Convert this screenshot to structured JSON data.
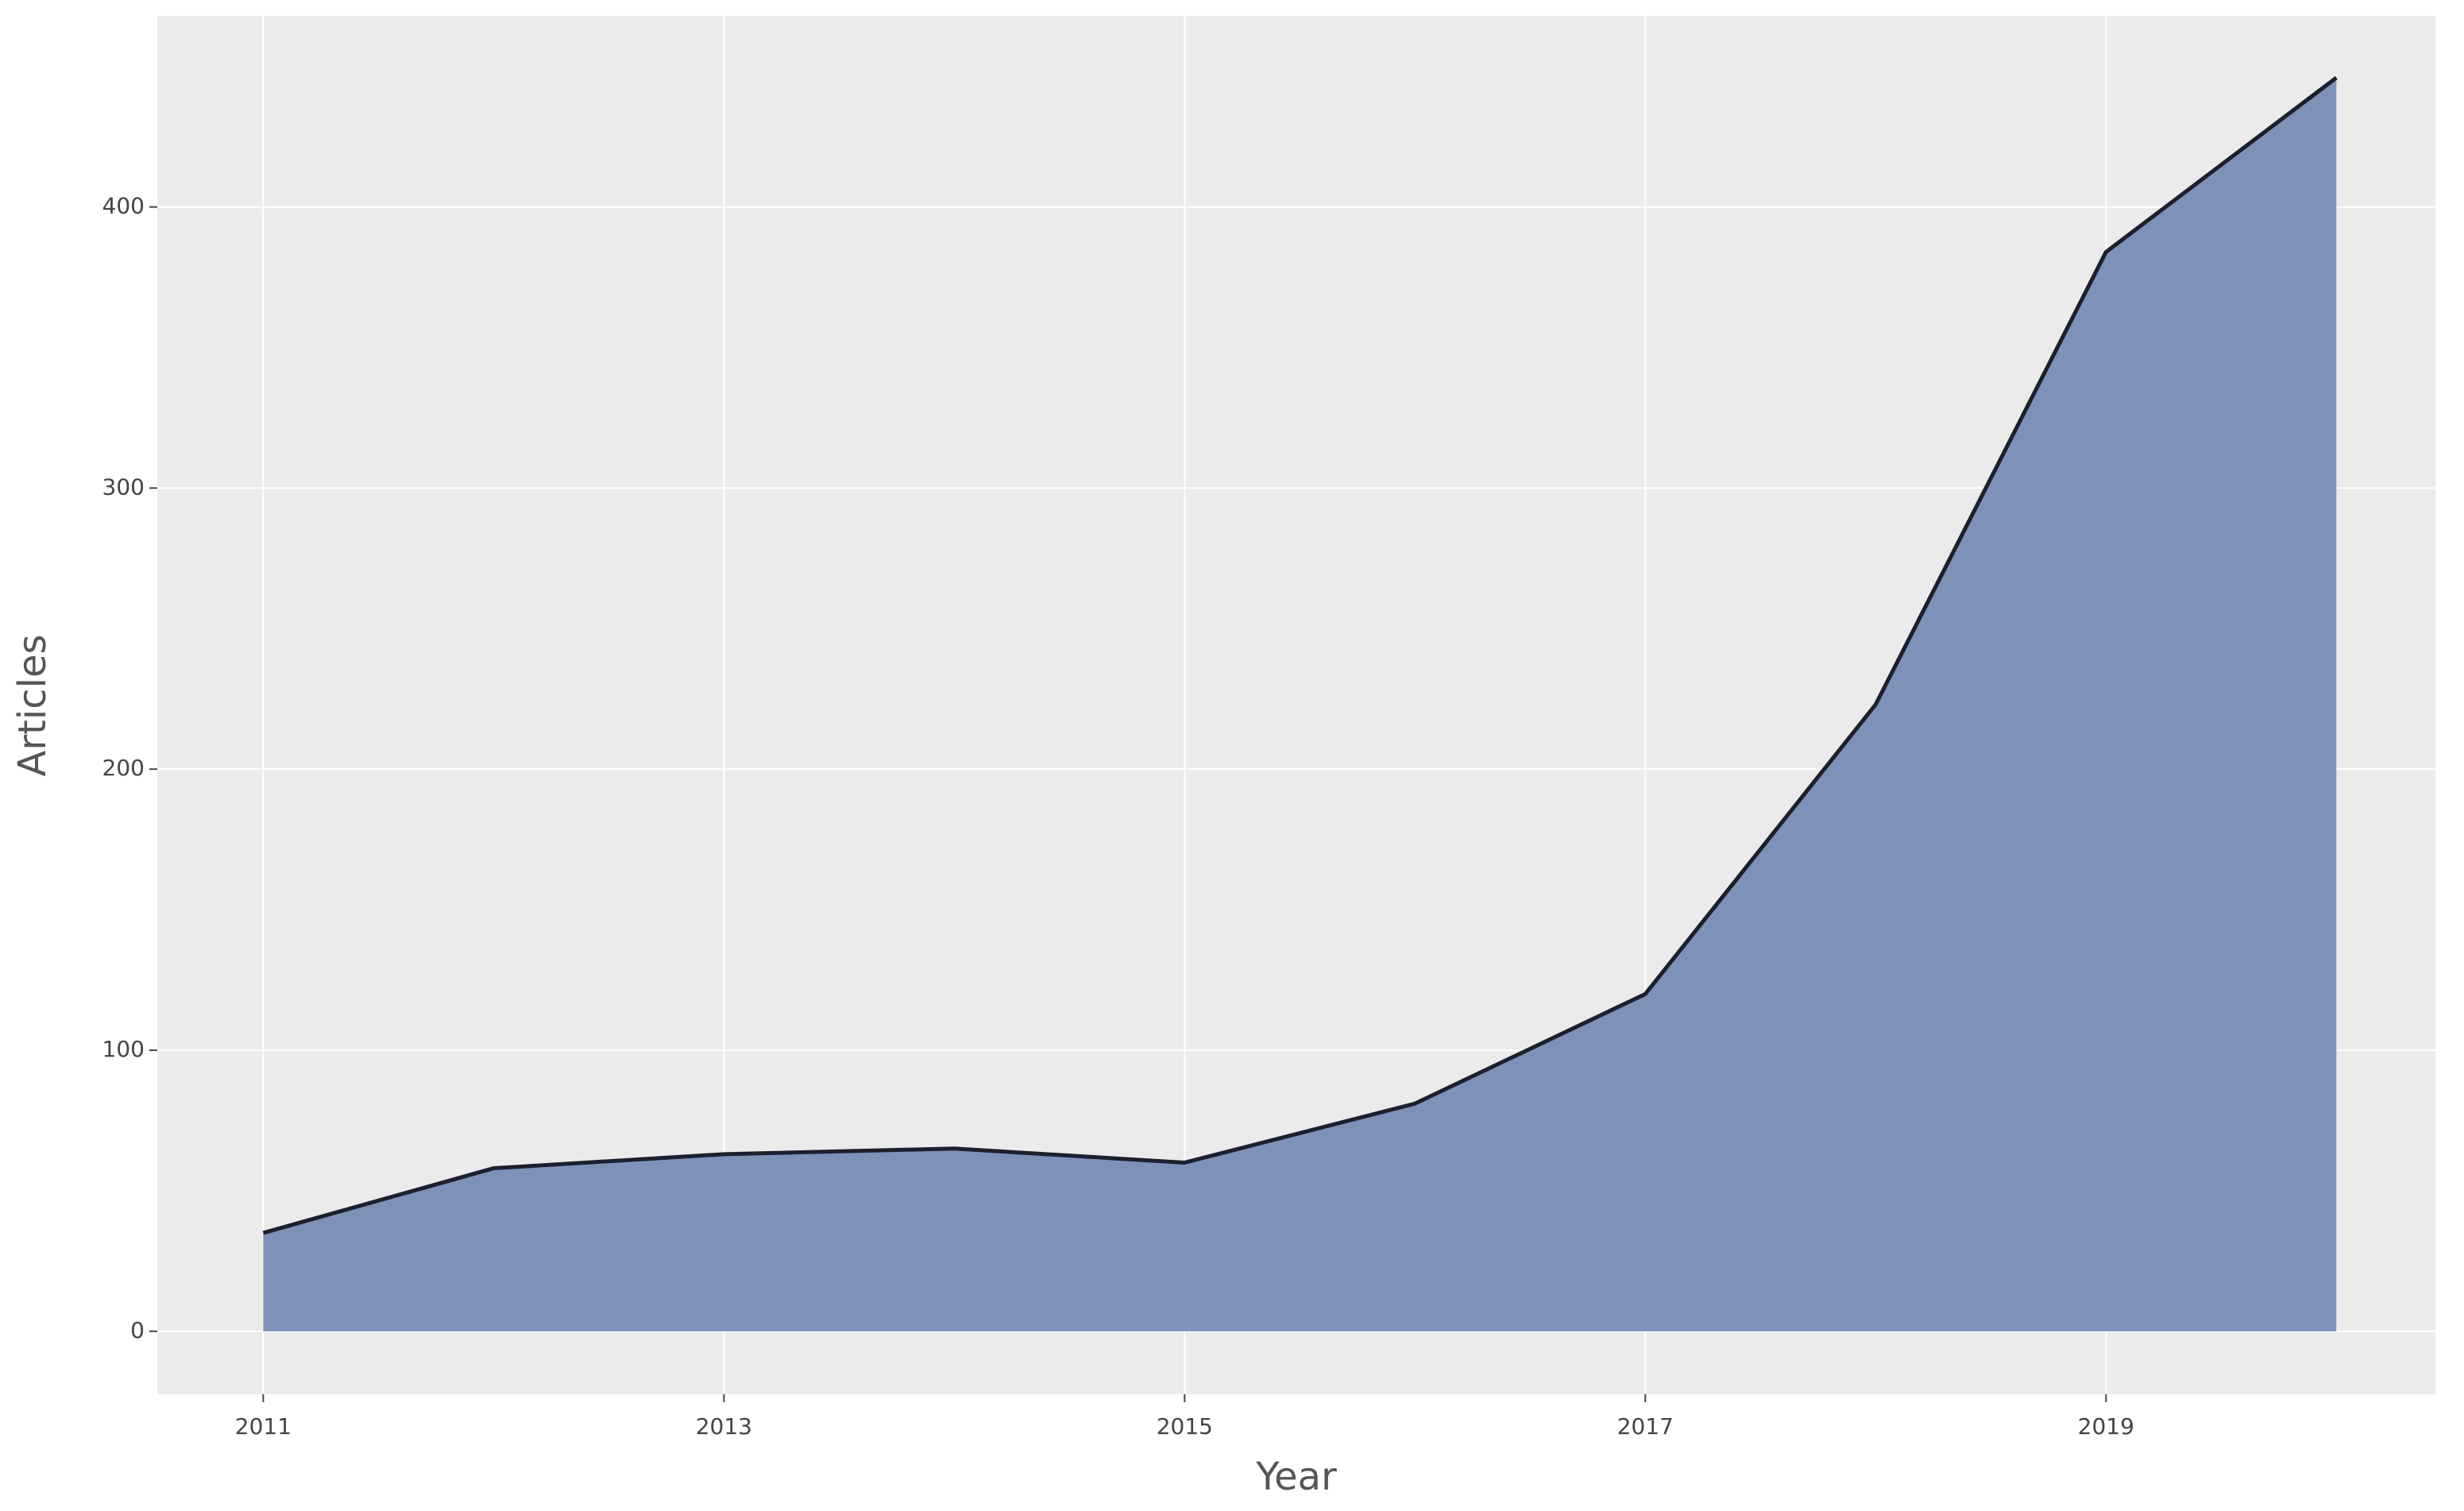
{
  "chart_data": {
    "type": "area",
    "x_label": "Year",
    "y_label": "Articles",
    "x": [
      2011,
      2012,
      2013,
      2014,
      2015,
      2016,
      2017,
      2018,
      2019,
      2020
    ],
    "series": [
      {
        "name": "Articles",
        "color": "#7a8fb8",
        "line_color": "#1c1f2e",
        "values": [
          35,
          58,
          63,
          65,
          60,
          81,
          120,
          223,
          384,
          446
        ]
      }
    ],
    "xlim": [
      2010.54,
      2020.43
    ],
    "xticks": [
      2011,
      2013,
      2015,
      2017,
      2019
    ],
    "ylim": [
      -22.4,
      468
    ],
    "yticks": [
      0,
      100,
      200,
      300,
      400
    ],
    "grid": true,
    "panel_color": "#ebebeb"
  }
}
